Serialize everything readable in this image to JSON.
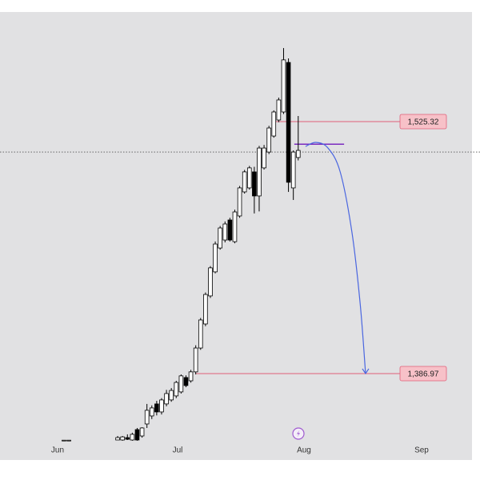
{
  "chart_data": {
    "type": "candlestick",
    "categories": [
      null,
      null,
      null,
      null,
      null,
      null,
      null,
      null,
      null,
      null,
      null,
      null,
      null,
      null,
      null,
      null,
      null,
      null,
      null,
      null,
      null,
      null,
      null,
      null,
      null,
      null,
      null,
      null,
      null,
      null,
      null,
      null,
      null,
      null,
      null,
      null,
      null,
      null,
      null,
      null,
      null,
      null,
      null,
      null,
      null,
      null,
      null,
      null,
      null
    ],
    "open": [
      1350.3,
      1350.3,
      null,
      null,
      null,
      null,
      null,
      null,
      null,
      null,
      null,
      1350.5,
      1350.5,
      1351.8,
      1350.5,
      1356.2,
      1352.7,
      1359.3,
      1363.7,
      1370.3,
      1365.9,
      1370.3,
      1372.5,
      1374.7,
      1376.9,
      1384.8,
      1383.0,
      1387.9,
      1401.0,
      1414.2,
      1429.6,
      1442.8,
      1455.9,
      1460.3,
      1471.3,
      1459.4,
      1473.5,
      1486.7,
      1488.9,
      1497.7,
      1484.5,
      1499.9,
      1508.6,
      1517.4,
      1526.2,
      1530.6,
      1557.8,
      1488.9,
      1505.6
    ],
    "high": [
      1350.5,
      1350.5,
      null,
      null,
      null,
      null,
      null,
      null,
      null,
      null,
      null,
      1352.7,
      1352.7,
      1353.6,
      1354.5,
      1357.1,
      1357.5,
      1370.3,
      1369.5,
      1372.0,
      1373.5,
      1378.0,
      1379.0,
      1383.0,
      1386.5,
      1386.0,
      1389.0,
      1402.5,
      1417.5,
      1431.5,
      1446.0,
      1459.5,
      1468.0,
      1470.5,
      1472.5,
      1477.0,
      1490.0,
      1498.8,
      1501.0,
      1500.5,
      1512.0,
      1512.5,
      1523.0,
      1531.5,
      1538.5,
      1565.7,
      1560.0,
      1509.5,
      1528.4
    ],
    "low": [
      1350.1,
      1350.1,
      null,
      null,
      null,
      null,
      null,
      null,
      null,
      null,
      null,
      1350.5,
      1350.1,
      1350.5,
      1350.1,
      1350.1,
      1351.8,
      1357.1,
      1362.0,
      1364.0,
      1364.5,
      1369.0,
      1371.5,
      1373.5,
      1376.0,
      1379.5,
      1382.0,
      1386.5,
      1400.0,
      1413.0,
      1428.5,
      1442.0,
      1455.0,
      1459.0,
      1459.5,
      1458.5,
      1472.5,
      1485.8,
      1488.0,
      1474.9,
      1476.0,
      1499.0,
      1507.5,
      1516.5,
      1525.0,
      1529.5,
      1486.7,
      1482.3,
      1504.0
    ],
    "close": [
      1350.4,
      1350.4,
      null,
      null,
      null,
      null,
      null,
      null,
      null,
      null,
      null,
      1351.8,
      1352.2,
      1350.9,
      1353.6,
      1350.5,
      1357.1,
      1366.8,
      1368.1,
      1365.9,
      1372.5,
      1376.0,
      1377.7,
      1382.1,
      1385.7,
      1380.4,
      1387.9,
      1401.0,
      1416.4,
      1430.4,
      1445.0,
      1458.1,
      1466.9,
      1469.1,
      1460.3,
      1475.7,
      1488.9,
      1497.7,
      1499.9,
      1484.5,
      1510.8,
      1510.8,
      1521.8,
      1530.6,
      1537.2,
      1559.2,
      1492.0,
      1508.6,
      1509.5
    ],
    "up_color": "#ffffff",
    "down_color": "#000000",
    "xlim": [
      -13.11,
      83.61
    ],
    "ylim": [
      1348.3,
      1585.5
    ],
    "xticks": [
      {
        "value": -1.31,
        "label": "Jun"
      },
      {
        "value": 23.28,
        "label": "Jul"
      },
      {
        "value": 49.18,
        "label": "Aug"
      },
      {
        "value": 73.28,
        "label": "Sep"
      }
    ],
    "price_lines": [
      {
        "value": 1525.32,
        "label": "1,525.32",
        "x_start": 42.6,
        "color": "#e0607a"
      },
      {
        "value": 1386.97,
        "label": "1,386.97",
        "x_start": 27.0,
        "color": "#e0607a"
      }
    ],
    "level_line": {
      "value": 1512.9,
      "x_start": 47.2,
      "x_end": 57.4,
      "color": "#7b2cbf"
    },
    "crosshair_y": 1508.6,
    "projection": {
      "color": "#4a66e0",
      "x": [
        49.5,
        51.6,
        54.1,
        56.6,
        59.0,
        60.7,
        61.8
      ],
      "y": [
        1511.7,
        1513.9,
        1510.8,
        1497.7,
        1464.7,
        1425.2,
        1386.97
      ]
    }
  }
}
